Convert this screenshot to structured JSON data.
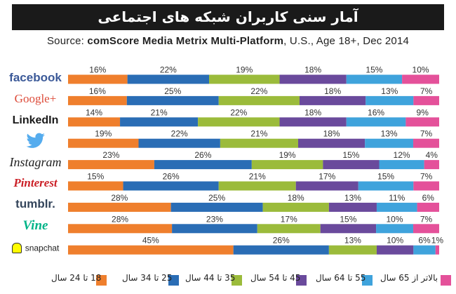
{
  "title": "آمار سنی کاربران شبکه های اجتماعی",
  "subtitle": {
    "prefix": "Source: ",
    "bold": "comScore Media Metrix Multi-Platform",
    "suffix": ", U.S., Age 18+, Dec 2014"
  },
  "colors": [
    "#ef7f2d",
    "#2a6db5",
    "#9bbb3b",
    "#6a4a9c",
    "#3fa3dc",
    "#e4519a"
  ],
  "chart_data": {
    "type": "bar",
    "stacked": true,
    "orientation": "horizontal",
    "categories": [
      "facebook",
      "Google+",
      "LinkedIn",
      "twitter",
      "Instagram",
      "Pinterest",
      "tumblr.",
      "Vine",
      "snapchat"
    ],
    "series": [
      {
        "name": "18 تا 24 سال",
        "values": [
          16,
          16,
          14,
          19,
          23,
          15,
          28,
          28,
          45
        ]
      },
      {
        "name": "25 تا 34 سال",
        "values": [
          22,
          25,
          21,
          22,
          26,
          26,
          25,
          23,
          26
        ]
      },
      {
        "name": "35 تا 44 سال",
        "values": [
          19,
          22,
          22,
          21,
          19,
          21,
          18,
          17,
          13
        ]
      },
      {
        "name": "45 تا 54 سال",
        "values": [
          18,
          18,
          18,
          18,
          15,
          17,
          13,
          15,
          10
        ]
      },
      {
        "name": "55 تا 64 سال",
        "values": [
          15,
          13,
          16,
          13,
          12,
          15,
          11,
          10,
          6
        ]
      },
      {
        "name": "بالاتر از 65 سال",
        "values": [
          10,
          7,
          9,
          7,
          4,
          7,
          6,
          7,
          1
        ]
      }
    ],
    "labels": [
      [
        "16%",
        "22%",
        "19%",
        "18%",
        "15%",
        "10%"
      ],
      [
        "16%",
        "25%",
        "22%",
        "18%",
        "13%",
        "7%"
      ],
      [
        "14%",
        "21%",
        "22%",
        "18%",
        "16%",
        "9%"
      ],
      [
        "19%",
        "22%",
        "21%",
        "18%",
        "13%",
        "7%"
      ],
      [
        "23%",
        "26%",
        "19%",
        "15%",
        "12%",
        "4%"
      ],
      [
        "15%",
        "26%",
        "21%",
        "17%",
        "15%",
        "7%"
      ],
      [
        "28%",
        "25%",
        "18%",
        "13%",
        "11%",
        "6%"
      ],
      [
        "28%",
        "23%",
        "17%",
        "15%",
        "10%",
        "7%"
      ],
      [
        "45%",
        "26%",
        "13%",
        "10%",
        "6%",
        "1%"
      ]
    ],
    "xlim": [
      0,
      100
    ]
  },
  "legend_labels": [
    "18 تا 24 سال",
    "25 تا 34 سال",
    "35 تا 44 سال",
    "45 تا 54 سال",
    "55 تا 64 سال",
    "بالاتر از 65 سال"
  ]
}
